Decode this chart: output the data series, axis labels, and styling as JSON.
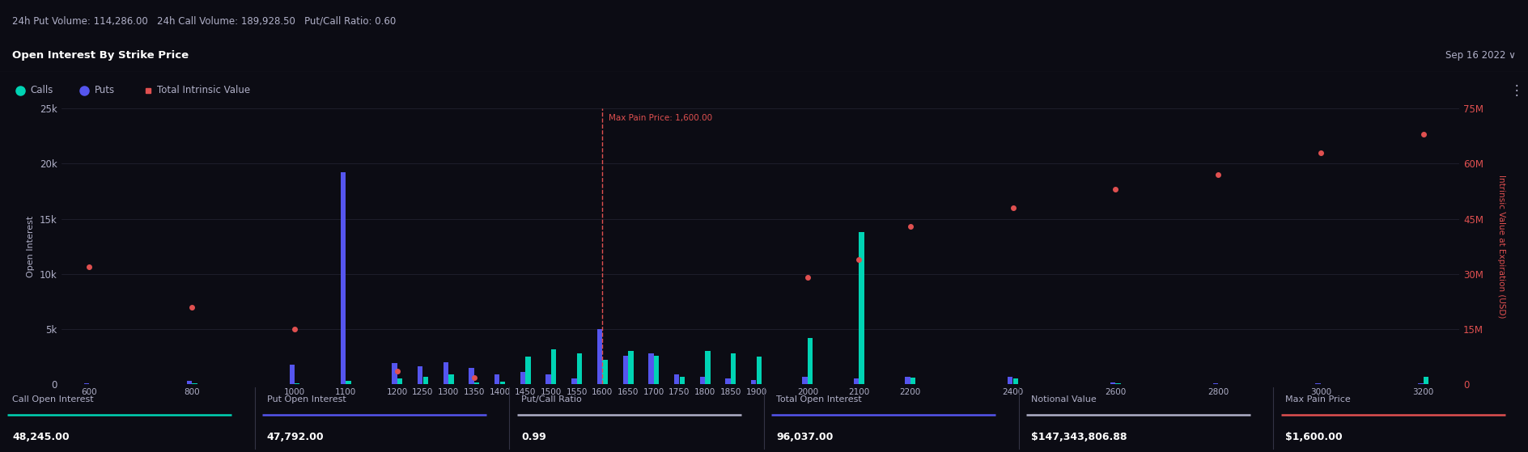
{
  "title": "Open Interest By Strike Price",
  "header_text": "24h Put Volume: 114,286.00   24h Call Volume: 189,928.50   Put/Call Ratio: 0.60",
  "date_label": "Sep 16 2022 ∨",
  "legend_calls": "Calls",
  "legend_puts": "Puts",
  "legend_intrinsic": "Total Intrinsic Value",
  "ylabel_left": "Open Interest",
  "ylabel_right": "Intrinsic Value at Expiration (USD)",
  "max_pain_price": 1600,
  "max_pain_label": "Max Pain Price: 1,600.00",
  "bg_color": "#0c0c14",
  "header_bg": "#151520",
  "title_bg": "#111118",
  "footer_bg": "#0c0c14",
  "calls_color": "#00d4b4",
  "puts_color": "#5555ee",
  "intrinsic_color": "#e05050",
  "grid_color": "#252535",
  "text_color": "#b0b0c8",
  "axis_label_color": "#8888aa",
  "strikes": [
    600,
    800,
    1000,
    1100,
    1200,
    1250,
    1300,
    1350,
    1400,
    1450,
    1500,
    1550,
    1600,
    1650,
    1700,
    1750,
    1800,
    1850,
    1900,
    2000,
    2100,
    2200,
    2400,
    2600,
    2800,
    3000,
    3200
  ],
  "calls": [
    0,
    50,
    100,
    300,
    500,
    700,
    900,
    150,
    200,
    2500,
    3200,
    2800,
    2200,
    3000,
    2600,
    700,
    3000,
    2800,
    2500,
    4200,
    13800,
    600,
    500,
    80,
    40,
    0,
    700
  ],
  "puts": [
    100,
    300,
    1800,
    19200,
    1900,
    1600,
    2000,
    1500,
    900,
    1100,
    900,
    500,
    5000,
    2600,
    2800,
    900,
    700,
    500,
    400,
    700,
    500,
    700,
    700,
    150,
    80,
    80,
    80
  ],
  "intrinsic_dots": {
    "600": 32000000,
    "800": 21000000,
    "1000": 15000000,
    "1200": 3500000,
    "1350": 1800000,
    "2000": 29000000,
    "2100": 34000000,
    "2200": 43000000,
    "2400": 48000000,
    "2600": 53000000,
    "2800": 57000000,
    "3000": 63000000,
    "3200": 68000000
  },
  "ylim_left": [
    0,
    25000
  ],
  "ylim_right": [
    0,
    75000000
  ],
  "yticks_left": [
    0,
    5000,
    10000,
    15000,
    20000,
    25000
  ],
  "ytick_labels_left": [
    "0",
    "5k",
    "10k",
    "15k",
    "20k",
    "25k"
  ],
  "yticks_right": [
    0,
    15000000,
    30000000,
    45000000,
    60000000,
    75000000
  ],
  "ytick_labels_right": [
    "0",
    "15M",
    "30M",
    "45M",
    "60M",
    "75M"
  ],
  "footer_labels": [
    "Call Open Interest",
    "Put Open Interest",
    "Put/Call Ratio",
    "Total Open Interest",
    "Notional Value",
    "Max Pain Price"
  ],
  "footer_values": [
    "48,245.00",
    "47,792.00",
    "0.99",
    "96,037.00",
    "$147,343,806.88",
    "$1,600.00"
  ],
  "footer_line_colors": [
    "#00d4b4",
    "#5555ee",
    "#b0b0c8",
    "#5555ee",
    "#b0b0c8",
    "#e05050"
  ]
}
